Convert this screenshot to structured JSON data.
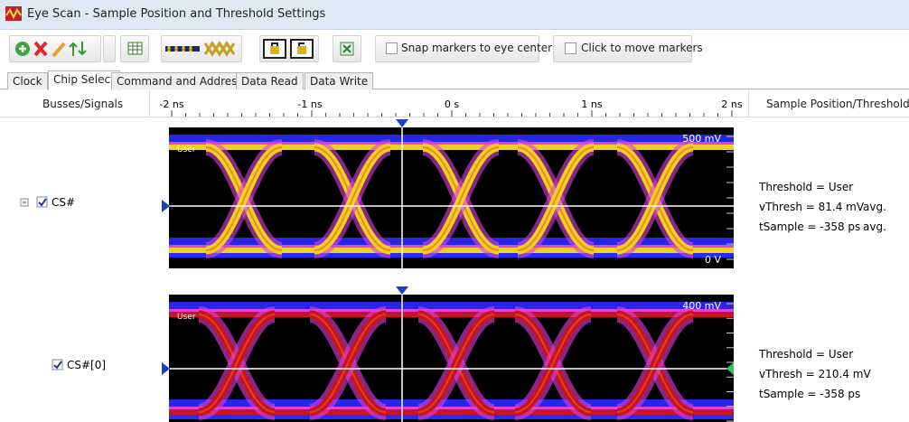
{
  "window": {
    "title": "Eye Scan - Sample Position and Threshold Settings"
  },
  "toolbar": {
    "snap_markers": "Snap markers to eye center",
    "click_to_move": "Click to move markers"
  },
  "tabs": [
    "Clock",
    "Chip Select",
    "Command and Address",
    "Data Read",
    "Data Write"
  ],
  "columns": {
    "signals": "Busses/Signals",
    "sample": "Sample Position/Threshold"
  },
  "time_axis": [
    "-2 ns",
    "-1 ns",
    "0 s",
    "1 ns",
    "2 ns"
  ],
  "signals": [
    {
      "name": "CS#",
      "scan_label": "User",
      "top_label": "500 mV",
      "bottom_label": "0 V",
      "threshold": "Threshold = User",
      "vthresh": "vThresh = 81.4 mV",
      "vthresh_note": "avg.",
      "tsample": "tSample = -358 ps",
      "tsample_note": "avg."
    },
    {
      "name": "CS#[0]",
      "scan_label": "User",
      "top_label": "400 mV",
      "threshold": "Threshold = User",
      "vthresh": "vThresh = 210.4 mV",
      "tsample": "tSample = -358 ps"
    }
  ]
}
